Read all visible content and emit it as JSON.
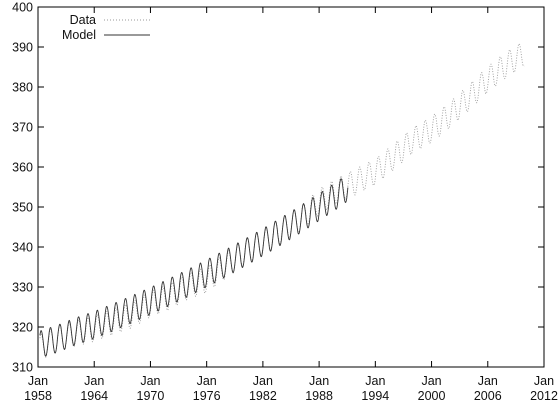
{
  "chart_data": {
    "type": "line",
    "title": "",
    "xlabel": "",
    "ylabel": "",
    "xlim": [
      1958,
      2012
    ],
    "ylim": [
      310,
      400
    ],
    "y_ticks": [
      310,
      320,
      330,
      340,
      350,
      360,
      370,
      380,
      390,
      400
    ],
    "x_ticks": [
      {
        "value": 1958,
        "month": "Jan",
        "year": "1958"
      },
      {
        "value": 1964,
        "month": "Jan",
        "year": "1964"
      },
      {
        "value": 1970,
        "month": "Jan",
        "year": "1970"
      },
      {
        "value": 1976,
        "month": "Jan",
        "year": "1976"
      },
      {
        "value": 1982,
        "month": "Jan",
        "year": "1982"
      },
      {
        "value": 1988,
        "month": "Jan",
        "year": "1988"
      },
      {
        "value": 1994,
        "month": "Jan",
        "year": "1994"
      },
      {
        "value": 2000,
        "month": "Jan",
        "year": "2000"
      },
      {
        "value": 2006,
        "month": "Jan",
        "year": "2006"
      },
      {
        "value": 2012,
        "month": "Jan",
        "year": "2012"
      }
    ],
    "grid": false,
    "legend_position": "top-left",
    "series": [
      {
        "name": "Data",
        "style": "dotted",
        "color": "#9a9a9a",
        "seasonal_amplitude": 3.2,
        "x": [
          1958.2,
          1960,
          1962,
          1964,
          1966,
          1968,
          1970,
          1972,
          1974,
          1976,
          1978,
          1980,
          1982,
          1984,
          1986,
          1988,
          1990,
          1992,
          1994,
          1996,
          1998,
          2000,
          2002,
          2004,
          2006,
          2008,
          2009.9
        ],
        "trend": [
          315.0,
          316.9,
          318.4,
          319.6,
          321.3,
          323.0,
          325.7,
          327.5,
          330.2,
          331.8,
          335.3,
          338.7,
          341.1,
          344.3,
          347.0,
          351.3,
          354.2,
          356.4,
          358.8,
          362.6,
          366.7,
          369.4,
          373.1,
          377.4,
          381.9,
          385.6,
          388.5
        ]
      },
      {
        "name": "Model",
        "style": "solid",
        "color": "#333333",
        "seasonal_amplitude": 3.4,
        "x": [
          1958.2,
          1960,
          1962,
          1964,
          1966,
          1968,
          1970,
          1972,
          1974,
          1976,
          1978,
          1980,
          1982,
          1984,
          1986,
          1988,
          1990,
          1991.1
        ],
        "trend": [
          315.6,
          317.0,
          318.9,
          320.5,
          322.4,
          324.4,
          326.5,
          328.7,
          331.0,
          333.4,
          335.9,
          338.5,
          341.2,
          344.0,
          346.9,
          350.0,
          353.1,
          355.0
        ]
      }
    ]
  }
}
